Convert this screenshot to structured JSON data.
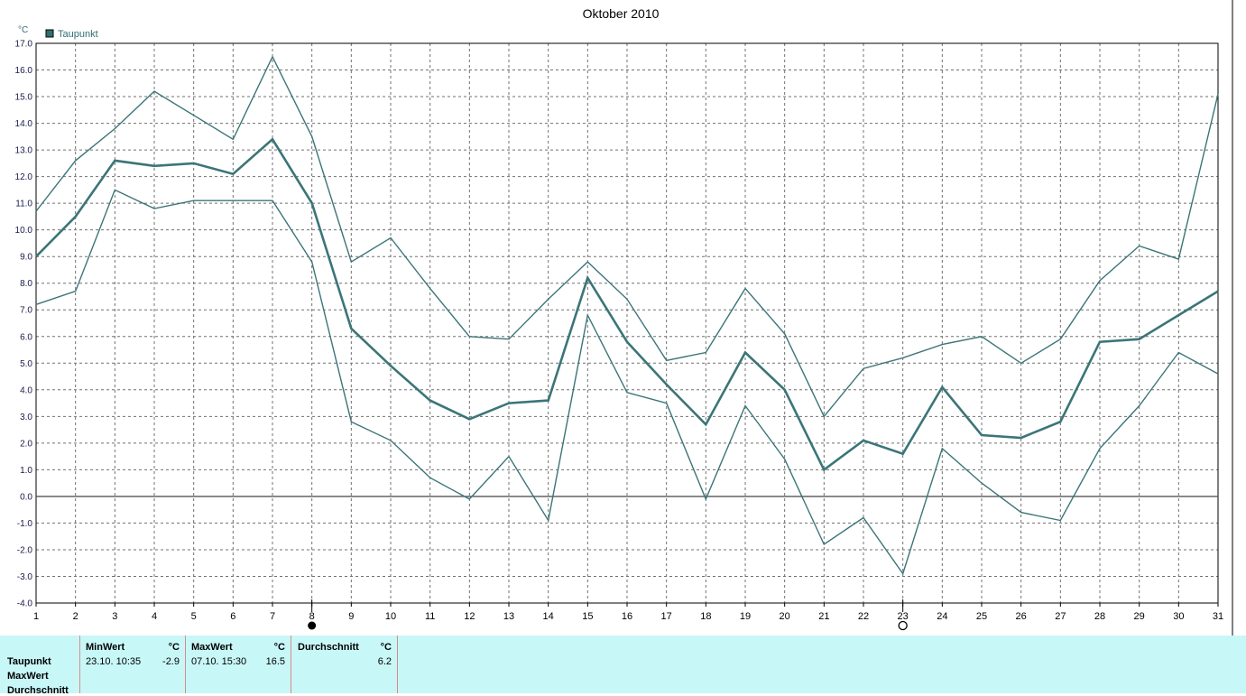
{
  "chart_data": {
    "type": "line",
    "title": "Oktober 2010",
    "ylabel": "°C",
    "legend": {
      "label": "Taupunkt",
      "color": "#2f6f72",
      "placement": "top-left"
    },
    "xlim": [
      1,
      31
    ],
    "ylim": [
      -4,
      17
    ],
    "grid": true,
    "x": [
      1,
      2,
      3,
      4,
      5,
      6,
      7,
      8,
      9,
      10,
      11,
      12,
      13,
      14,
      15,
      16,
      17,
      18,
      19,
      20,
      21,
      22,
      23,
      24,
      25,
      26,
      27,
      28,
      29,
      30,
      31
    ],
    "x_tick_labels": [
      "1",
      "2",
      "3",
      "4",
      "5",
      "6",
      "7",
      "8",
      "9",
      "10",
      "11",
      "12",
      "13",
      "14",
      "15",
      "16",
      "17",
      "18",
      "19",
      "20",
      "21",
      "22",
      "23",
      "24",
      "25",
      "26",
      "27",
      "28",
      "29",
      "30",
      "31"
    ],
    "y_tick_labels": [
      "17.0",
      "16.0",
      "15.0",
      "14.0",
      "13.0",
      "12.0",
      "11.0",
      "10.0",
      "9.0",
      "8.0",
      "7.0",
      "6.0",
      "5.0",
      "4.0",
      "3.0",
      "2.0",
      "1.0",
      "0.0",
      "-1.0",
      "-2.0",
      "-3.0",
      "-4.0"
    ],
    "series": [
      {
        "values": [
          10.7,
          12.6,
          13.8,
          15.2,
          14.3,
          13.4,
          16.5,
          13.5,
          8.8,
          9.7,
          7.8,
          6.0,
          5.9,
          7.4,
          8.8,
          7.4,
          5.1,
          5.4,
          7.8,
          6.1,
          3.0,
          4.8,
          5.2,
          5.7,
          6.0,
          5.0,
          5.9,
          8.1,
          9.4,
          8.9,
          15.1
        ],
        "color": "#3b7578",
        "width": 1.4
      },
      {
        "values": [
          9.0,
          10.5,
          12.6,
          12.4,
          12.5,
          12.1,
          13.4,
          11.0,
          6.3,
          4.9,
          3.6,
          2.9,
          3.5,
          3.6,
          8.2,
          5.8,
          4.2,
          2.7,
          5.4,
          4.0,
          1.0,
          2.1,
          1.6,
          4.1,
          2.3,
          2.2,
          2.8,
          5.8,
          5.9,
          6.8,
          7.7
        ],
        "color": "#3b7578",
        "width": 2.6
      },
      {
        "values": [
          7.2,
          7.7,
          11.5,
          10.8,
          11.1,
          11.1,
          11.1,
          8.8,
          2.8,
          2.1,
          0.7,
          -0.1,
          1.5,
          -0.9,
          6.8,
          3.9,
          3.5,
          -0.1,
          3.4,
          1.4,
          -1.8,
          -0.8,
          -2.9,
          1.8,
          0.5,
          -0.6,
          -0.9,
          1.8,
          3.4,
          5.4,
          4.6
        ],
        "color": "#3b7578",
        "width": 1.4
      }
    ],
    "markers": [
      {
        "x": 8,
        "symbol": "filled-circle"
      },
      {
        "x": 23,
        "symbol": "open-circle"
      }
    ]
  },
  "stats": {
    "row_labels": [
      "Taupunkt",
      "MaxWert",
      "Durchschnitt"
    ],
    "columns": [
      {
        "header": "MinWert",
        "unit": "°C",
        "date": "23.10.  10:35",
        "value": "-2.9"
      },
      {
        "header": "MaxWert",
        "unit": "°C",
        "date": "07.10.  15:30",
        "value": "16.5"
      },
      {
        "header": "Durchschnitt",
        "unit": "°C",
        "date": "",
        "value": "6.2"
      }
    ]
  }
}
